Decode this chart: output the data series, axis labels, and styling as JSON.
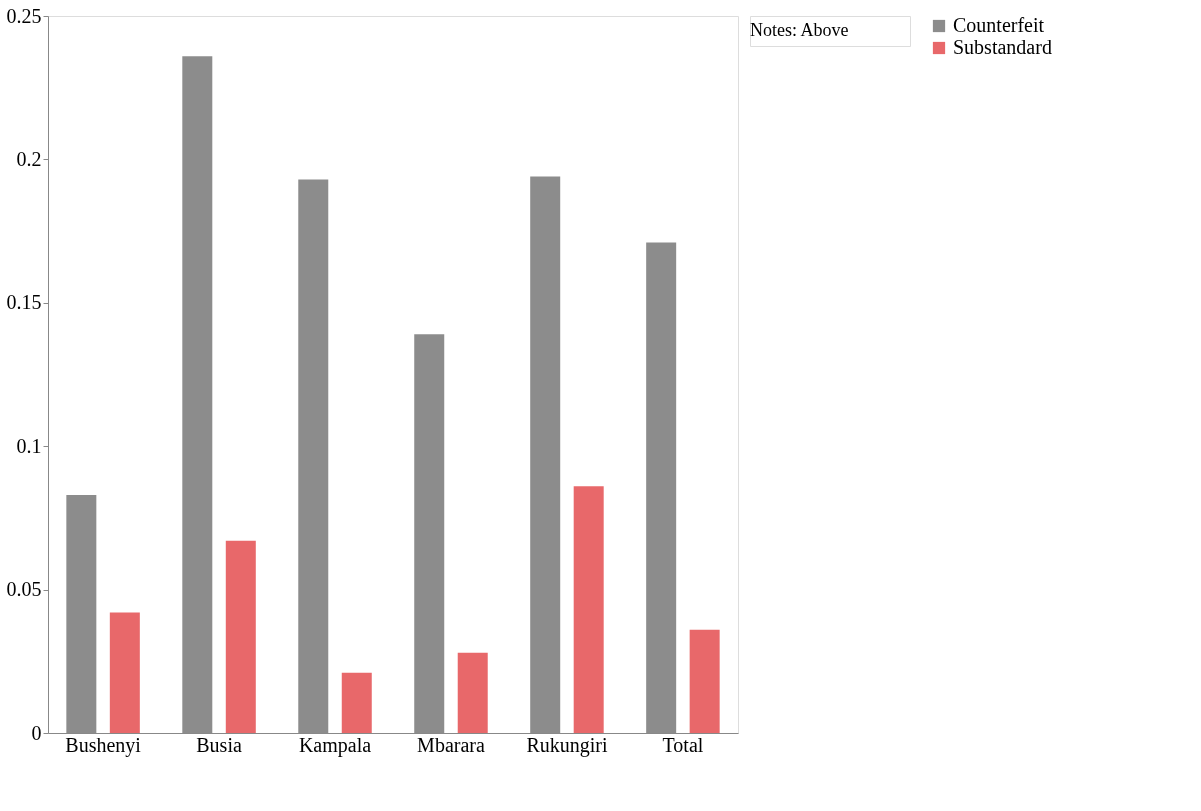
{
  "chart_data": {
    "type": "bar",
    "categories": [
      "Bushenyi",
      "Busia",
      "Kampala",
      "Mbarara",
      "Rukungiri",
      "Total"
    ],
    "series": [
      {
        "name": "Counterfeit",
        "color": "#8c8c8c",
        "values": [
          0.083,
          0.236,
          0.193,
          0.139,
          0.194,
          0.171
        ]
      },
      {
        "name": "Substandard",
        "color": "#e8686a",
        "values": [
          0.042,
          0.067,
          0.021,
          0.028,
          0.086,
          0.036
        ]
      }
    ],
    "ylim": [
      0,
      0.25
    ],
    "yticks": [
      0,
      0.05,
      0.1,
      0.15,
      0.2,
      0.25
    ],
    "grid": false,
    "legend": "right",
    "annotations": [
      "Notes:    Above"
    ]
  }
}
